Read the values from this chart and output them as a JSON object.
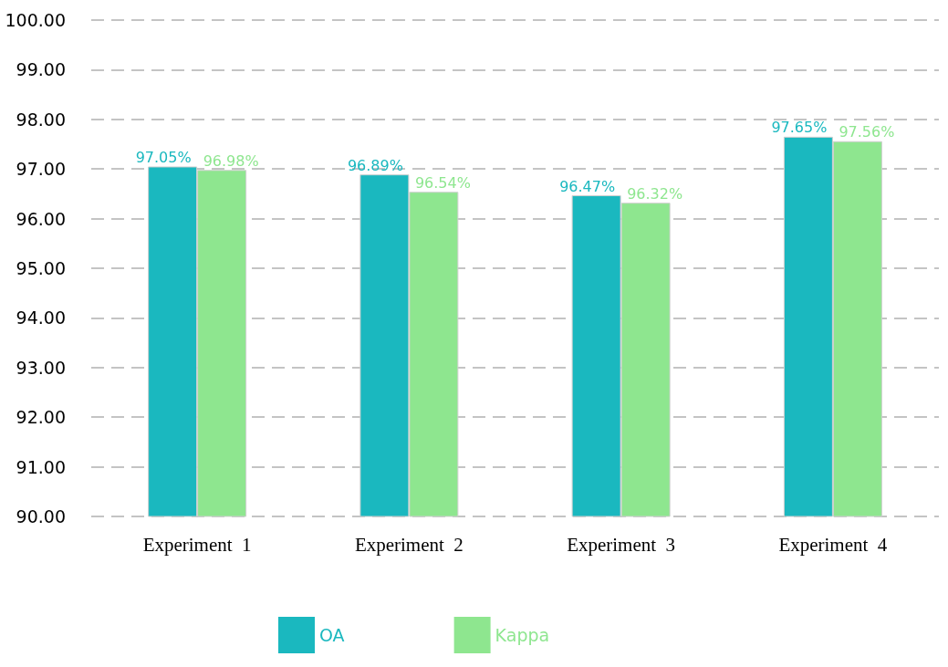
{
  "chart_data": {
    "type": "bar",
    "categories": [
      "Experiment  1",
      "Experiment  2",
      "Experiment  3",
      "Experiment  4"
    ],
    "series": [
      {
        "name": "OA",
        "color": "#1ab8bf",
        "values": [
          97.05,
          96.89,
          96.47,
          97.65
        ],
        "value_labels": [
          "97.05%",
          "96.89%",
          "96.47%",
          "97.65%"
        ]
      },
      {
        "name": "Kappa",
        "color": "#8ee68f",
        "values": [
          96.98,
          96.54,
          96.32,
          97.56
        ],
        "value_labels": [
          "96.98%",
          "96.54%",
          "96.32%",
          "97.56%"
        ]
      }
    ],
    "ylim": [
      90,
      100
    ],
    "yticks": [
      {
        "value": 90,
        "label": "90.00"
      },
      {
        "value": 91,
        "label": "91.00"
      },
      {
        "value": 92,
        "label": "92.00"
      },
      {
        "value": 93,
        "label": "93.00"
      },
      {
        "value": 94,
        "label": "94.00"
      },
      {
        "value": 95,
        "label": "95.00"
      },
      {
        "value": 96,
        "label": "96.00"
      },
      {
        "value": 97,
        "label": "97.00"
      },
      {
        "value": 98,
        "label": "98.00"
      },
      {
        "value": 99,
        "label": "99.00"
      },
      {
        "value": 100,
        "label": "100.00"
      }
    ],
    "grid": "y",
    "legend": "bottom"
  }
}
